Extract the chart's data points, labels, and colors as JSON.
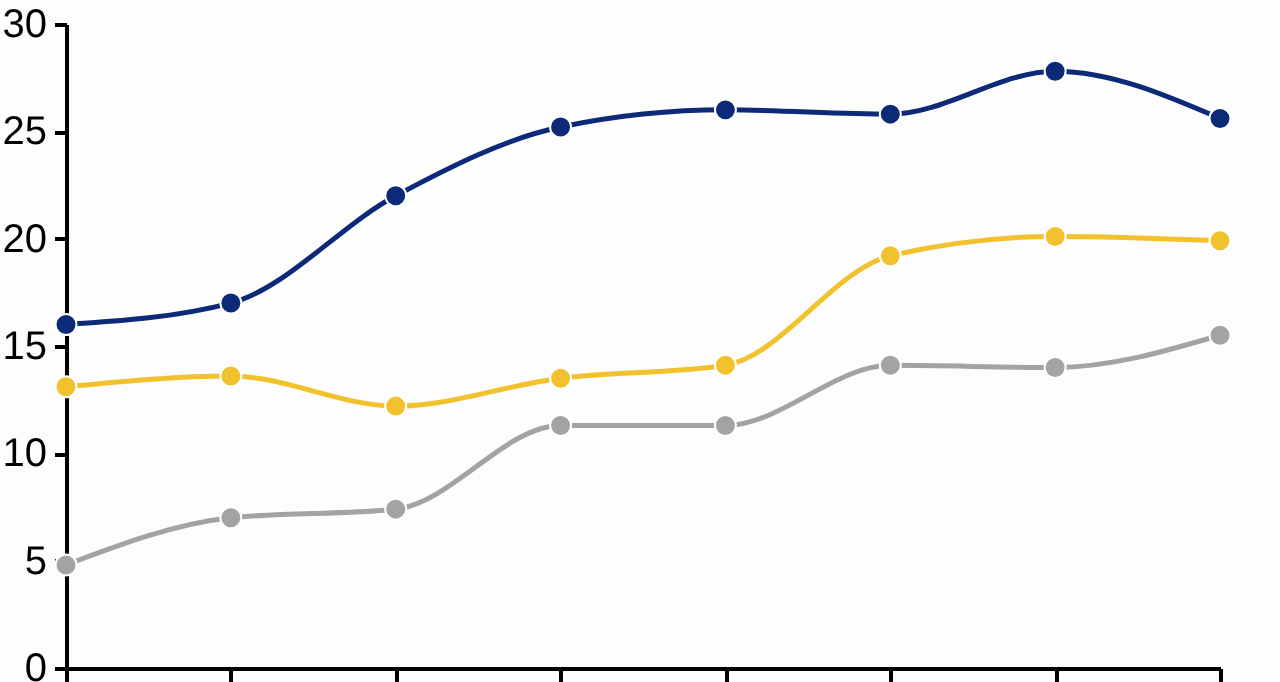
{
  "chart_data": {
    "type": "line",
    "categories": [
      null,
      null,
      null,
      null,
      null,
      null,
      null,
      null
    ],
    "series": [
      {
        "color": "#0d2a78",
        "values": [
          16.0,
          17.0,
          22.0,
          25.2,
          26.0,
          25.8,
          27.8,
          25.6
        ]
      },
      {
        "color": "#f2c12e",
        "values": [
          13.1,
          13.6,
          12.2,
          13.5,
          14.1,
          19.2,
          20.1,
          19.9
        ]
      },
      {
        "color": "#a3a3a3",
        "values": [
          4.8,
          7.0,
          7.4,
          11.3,
          11.3,
          14.1,
          14.0,
          15.5
        ]
      }
    ],
    "ylim": [
      0,
      30
    ],
    "yticks": [
      0,
      5,
      10,
      15,
      20,
      25,
      30
    ],
    "grid": false,
    "legend": false,
    "marker": "circle",
    "line_style": "solid"
  }
}
